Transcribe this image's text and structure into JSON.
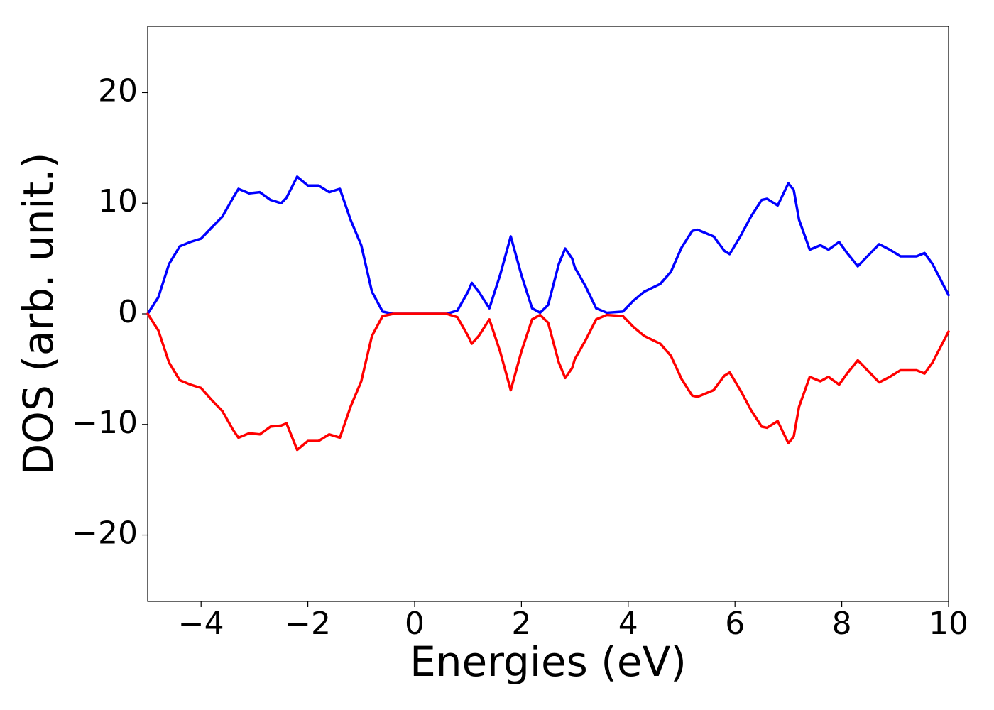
{
  "chart_data": {
    "type": "line",
    "xlabel": "Energies (eV)",
    "ylabel": "DOS (arb. unit.)",
    "x": [
      -5,
      -4.8,
      -4.6,
      -4.4,
      -4.2,
      -4.0,
      -3.8,
      -3.6,
      -3.4,
      -3.3,
      -3.1,
      -2.9,
      -2.7,
      -2.5,
      -2.4,
      -2.2,
      -2.0,
      -1.8,
      -1.6,
      -1.4,
      -1.2,
      -1.0,
      -0.8,
      -0.6,
      -0.4,
      0.6,
      0.8,
      1.0,
      1.07,
      1.2,
      1.4,
      1.6,
      1.8,
      2.0,
      2.2,
      2.35,
      2.5,
      2.7,
      2.82,
      2.95,
      3.0,
      3.2,
      3.4,
      3.6,
      3.9,
      4.1,
      4.3,
      4.6,
      4.8,
      5.0,
      5.2,
      5.3,
      5.6,
      5.8,
      5.9,
      6.1,
      6.3,
      6.5,
      6.6,
      6.8,
      7.0,
      7.1,
      7.2,
      7.4,
      7.6,
      7.75,
      7.95,
      8.1,
      8.3,
      8.5,
      8.7,
      8.9,
      9.1,
      9.4,
      9.55,
      9.7,
      10
    ],
    "series": [
      {
        "color": "#0000ff",
        "values": [
          0,
          1.5,
          4.5,
          6.1,
          6.5,
          6.8,
          7.8,
          8.8,
          10.5,
          11.3,
          10.9,
          11.0,
          10.3,
          10.0,
          10.5,
          12.4,
          11.6,
          11.6,
          11.0,
          11.3,
          8.5,
          6.2,
          2.0,
          0.2,
          0,
          0,
          0.3,
          2.0,
          2.8,
          2.0,
          0.5,
          3.5,
          7.0,
          3.5,
          0.5,
          0.1,
          0.8,
          4.5,
          5.9,
          5.0,
          4.2,
          2.5,
          0.5,
          0.1,
          0.2,
          1.2,
          2.0,
          2.7,
          3.8,
          6.0,
          7.5,
          7.6,
          7.0,
          5.7,
          5.4,
          7.0,
          8.8,
          10.3,
          10.4,
          9.8,
          11.8,
          11.2,
          8.5,
          5.8,
          6.2,
          5.8,
          6.5,
          5.5,
          4.3,
          5.3,
          6.3,
          5.8,
          5.2,
          5.2,
          5.5,
          4.5,
          1.7
        ]
      },
      {
        "color": "#ff0000",
        "values": [
          0,
          -1.5,
          -4.4,
          -6.0,
          -6.4,
          -6.7,
          -7.8,
          -8.8,
          -10.5,
          -11.2,
          -10.8,
          -10.9,
          -10.2,
          -10.1,
          -9.9,
          -12.3,
          -11.5,
          -11.5,
          -10.9,
          -11.2,
          -8.4,
          -6.1,
          -2.0,
          -0.2,
          0,
          0,
          -0.3,
          -2.0,
          -2.7,
          -2.0,
          -0.5,
          -3.4,
          -6.9,
          -3.4,
          -0.5,
          -0.1,
          -0.8,
          -4.4,
          -5.8,
          -4.9,
          -4.1,
          -2.4,
          -0.5,
          -0.1,
          -0.2,
          -1.2,
          -2.0,
          -2.7,
          -3.8,
          -5.9,
          -7.4,
          -7.5,
          -6.9,
          -5.6,
          -5.3,
          -6.9,
          -8.7,
          -10.2,
          -10.3,
          -9.7,
          -11.7,
          -11.1,
          -8.4,
          -5.7,
          -6.1,
          -5.7,
          -6.4,
          -5.4,
          -4.2,
          -5.2,
          -6.2,
          -5.7,
          -5.1,
          -5.1,
          -5.4,
          -4.4,
          -1.6
        ]
      }
    ],
    "xlim": [
      -5,
      10
    ],
    "ylim": [
      -26,
      26
    ],
    "xticks": [
      {
        "value": -4,
        "label": "−4"
      },
      {
        "value": -2,
        "label": "−2"
      },
      0,
      2,
      4,
      6,
      8,
      10
    ],
    "yticks": [
      {
        "value": -20,
        "label": "−20"
      },
      {
        "value": -10,
        "label": "−10"
      },
      0,
      10,
      20
    ],
    "grid": false
  }
}
